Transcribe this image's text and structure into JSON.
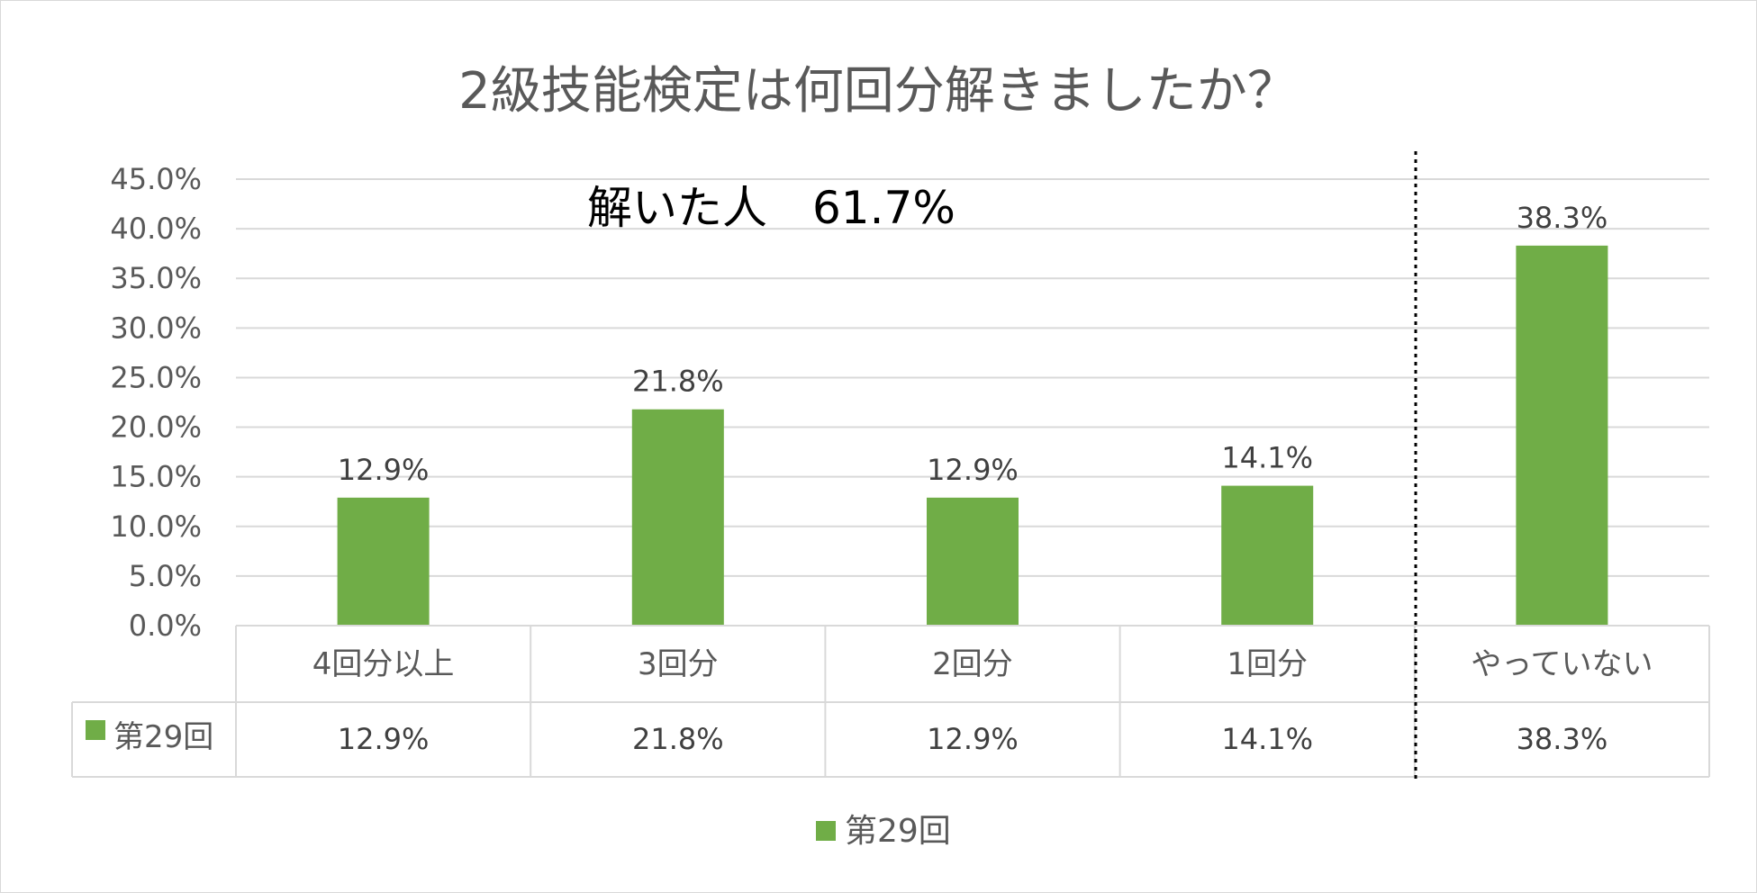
{
  "chart_data": {
    "type": "bar",
    "title": "2級技能検定は何回分解きましたか？",
    "annotation": "解いた人　61.7%",
    "categories": [
      "4回分以上",
      "3回分",
      "2回分",
      "1回分",
      "やっていない"
    ],
    "series": [
      {
        "name": "第29回",
        "values": [
          12.9,
          21.8,
          12.9,
          14.1,
          38.3
        ],
        "labels": [
          "12.9%",
          "21.8%",
          "12.9%",
          "14.1%",
          "38.3%"
        ],
        "color": "#70ad47"
      }
    ],
    "y_ticks": [
      "0.0%",
      "5.0%",
      "10.0%",
      "15.0%",
      "20.0%",
      "25.0%",
      "30.0%",
      "35.0%",
      "40.0%",
      "45.0%"
    ],
    "ylim": [
      0,
      45
    ],
    "grid": true,
    "data_table": true,
    "legend_position": "bottom",
    "divider": "dotted line between 1回分 and やっていない",
    "colors": {
      "bar": "#70ad47",
      "grid": "#d9d9d9",
      "text": "#595959"
    }
  }
}
